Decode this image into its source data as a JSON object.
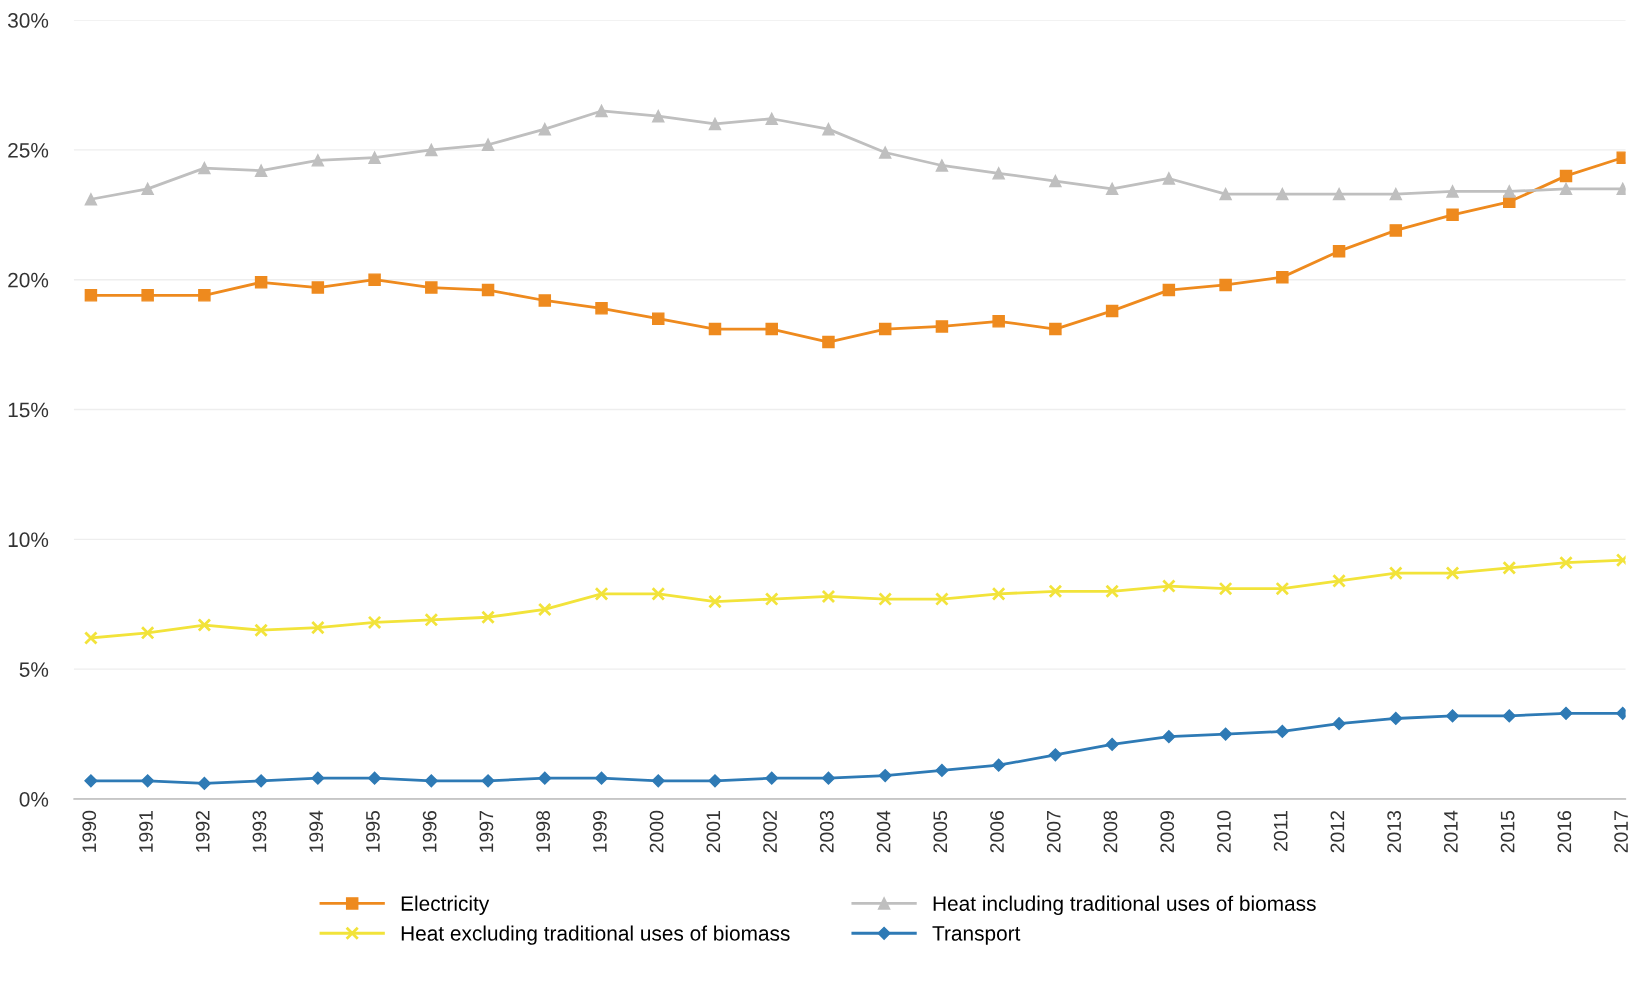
{
  "chart_data": {
    "type": "line",
    "categories": [
      "1990",
      "1991",
      "1992",
      "1993",
      "1994",
      "1995",
      "1996",
      "1997",
      "1998",
      "1999",
      "2000",
      "2001",
      "2002",
      "2003",
      "2004",
      "2005",
      "2006",
      "2007",
      "2008",
      "2009",
      "2010",
      "2011",
      "2012",
      "2013",
      "2014",
      "2015",
      "2016",
      "2017"
    ],
    "series": [
      {
        "name": "Electricity",
        "color": "#ee8a1e",
        "marker": "square",
        "values": [
          19.4,
          19.4,
          19.4,
          19.9,
          19.7,
          20.0,
          19.7,
          19.6,
          19.2,
          18.9,
          18.5,
          18.1,
          18.1,
          17.6,
          18.1,
          18.2,
          18.4,
          18.1,
          18.8,
          19.6,
          19.8,
          20.1,
          21.1,
          21.9,
          22.5,
          23.0,
          24.0,
          24.7
        ]
      },
      {
        "name": "Heat excluding traditional uses of biomass",
        "color": "#f2e33a",
        "marker": "cross",
        "values": [
          6.2,
          6.4,
          6.7,
          6.5,
          6.6,
          6.8,
          6.9,
          7.0,
          7.3,
          7.9,
          7.9,
          7.6,
          7.7,
          7.8,
          7.7,
          7.7,
          7.9,
          8.0,
          8.0,
          8.2,
          8.1,
          8.1,
          8.4,
          8.7,
          8.7,
          8.9,
          9.1,
          9.2
        ]
      },
      {
        "name": "Heat including traditional uses of biomass",
        "color": "#bfbfbf",
        "marker": "triangle",
        "values": [
          23.1,
          23.5,
          24.3,
          24.2,
          24.6,
          24.7,
          25.0,
          25.2,
          25.8,
          26.5,
          26.3,
          26.0,
          26.2,
          25.8,
          24.9,
          24.4,
          24.1,
          23.8,
          23.5,
          23.9,
          23.3,
          23.3,
          23.3,
          23.3,
          23.4,
          23.4,
          23.5,
          23.5
        ]
      },
      {
        "name": "Transport",
        "color": "#2e7ab5",
        "marker": "diamond",
        "values": [
          0.7,
          0.7,
          0.6,
          0.7,
          0.8,
          0.8,
          0.7,
          0.7,
          0.8,
          0.8,
          0.7,
          0.7,
          0.8,
          0.8,
          0.9,
          1.1,
          1.3,
          1.7,
          2.1,
          2.4,
          2.5,
          2.6,
          2.9,
          3.1,
          3.2,
          3.2,
          3.3,
          3.3
        ]
      }
    ],
    "ylim": [
      0,
      30
    ],
    "yticks": [
      {
        "value": 0,
        "label": "0%"
      },
      {
        "value": 5,
        "label": "5%"
      },
      {
        "value": 10,
        "label": "10%"
      },
      {
        "value": 15,
        "label": "15%"
      },
      {
        "value": 20,
        "label": "20%"
      },
      {
        "value": 25,
        "label": "25%"
      },
      {
        "value": 30,
        "label": "30%"
      }
    ],
    "grid": "y",
    "legend": "bottom",
    "line_style": "solid"
  }
}
